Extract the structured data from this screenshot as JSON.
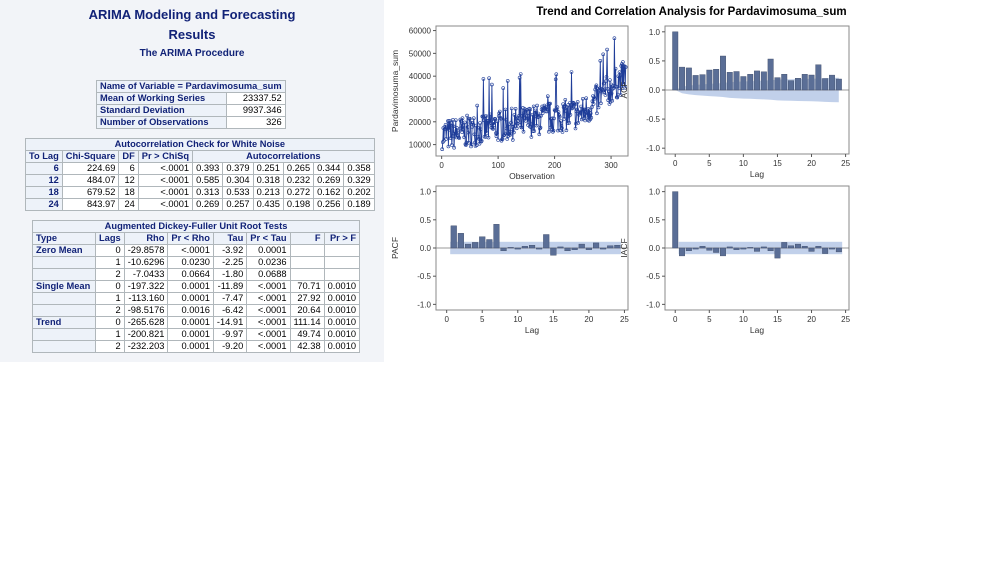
{
  "header": {
    "title_line1": "ARIMA Modeling and Forecasting",
    "title_line2": "Results",
    "procedure": "The ARIMA Procedure"
  },
  "variable_table": {
    "caption": "Name of Variable = Pardavimosuma_sum",
    "rows": [
      {
        "label": "Mean of Working Series",
        "value": "23337.52"
      },
      {
        "label": "Standard Deviation",
        "value": "9937.346"
      },
      {
        "label": "Number of Observations",
        "value": "326"
      }
    ]
  },
  "white_noise_table": {
    "caption": "Autocorrelation Check for White Noise",
    "headers": [
      "To Lag",
      "Chi-Square",
      "DF",
      "Pr > ChiSq",
      "Autocorrelations"
    ],
    "rows": [
      {
        "lag": "6",
        "chisq": "224.69",
        "df": "6",
        "p": "<.0001",
        "ac": [
          "0.393",
          "0.379",
          "0.251",
          "0.265",
          "0.344",
          "0.358"
        ]
      },
      {
        "lag": "12",
        "chisq": "484.07",
        "df": "12",
        "p": "<.0001",
        "ac": [
          "0.585",
          "0.304",
          "0.318",
          "0.232",
          "0.269",
          "0.329"
        ]
      },
      {
        "lag": "18",
        "chisq": "679.52",
        "df": "18",
        "p": "<.0001",
        "ac": [
          "0.313",
          "0.533",
          "0.213",
          "0.272",
          "0.162",
          "0.202"
        ]
      },
      {
        "lag": "24",
        "chisq": "843.97",
        "df": "24",
        "p": "<.0001",
        "ac": [
          "0.269",
          "0.257",
          "0.435",
          "0.198",
          "0.256",
          "0.189"
        ]
      }
    ]
  },
  "adf_table": {
    "caption": "Augmented Dickey-Fuller Unit Root Tests",
    "headers": [
      "Type",
      "Lags",
      "Rho",
      "Pr < Rho",
      "Tau",
      "Pr < Tau",
      "F",
      "Pr > F"
    ],
    "rows": [
      {
        "type": "Zero Mean",
        "lags": "0",
        "rho": "-29.8578",
        "prho": "<.0001",
        "tau": "-3.92",
        "ptau": "0.0001",
        "f": "",
        "pf": ""
      },
      {
        "type": "",
        "lags": "1",
        "rho": "-10.6296",
        "prho": "0.0230",
        "tau": "-2.25",
        "ptau": "0.0236",
        "f": "",
        "pf": ""
      },
      {
        "type": "",
        "lags": "2",
        "rho": "-7.0433",
        "prho": "0.0664",
        "tau": "-1.80",
        "ptau": "0.0688",
        "f": "",
        "pf": ""
      },
      {
        "type": "Single Mean",
        "lags": "0",
        "rho": "-197.322",
        "prho": "0.0001",
        "tau": "-11.89",
        "ptau": "<.0001",
        "f": "70.71",
        "pf": "0.0010"
      },
      {
        "type": "",
        "lags": "1",
        "rho": "-113.160",
        "prho": "0.0001",
        "tau": "-7.47",
        "ptau": "<.0001",
        "f": "27.92",
        "pf": "0.0010"
      },
      {
        "type": "",
        "lags": "2",
        "rho": "-98.5176",
        "prho": "0.0016",
        "tau": "-6.42",
        "ptau": "<.0001",
        "f": "20.64",
        "pf": "0.0010"
      },
      {
        "type": "Trend",
        "lags": "0",
        "rho": "-265.628",
        "prho": "0.0001",
        "tau": "-14.91",
        "ptau": "<.0001",
        "f": "111.14",
        "pf": "0.0010"
      },
      {
        "type": "",
        "lags": "1",
        "rho": "-200.821",
        "prho": "0.0001",
        "tau": "-9.97",
        "ptau": "<.0001",
        "f": "49.74",
        "pf": "0.0010"
      },
      {
        "type": "",
        "lags": "2",
        "rho": "-232.203",
        "prho": "0.0001",
        "tau": "-9.20",
        "ptau": "<.0001",
        "f": "42.38",
        "pf": "0.0010"
      }
    ]
  },
  "colors": {
    "bar": "#5a6e96",
    "line": "#1f3d99",
    "band": "#b6c8e6",
    "header_text": "#112277"
  },
  "chart_data": [
    {
      "panel": "series",
      "type": "line",
      "title": "Trend and Correlation Analysis for Pardavimosuma_sum",
      "xlabel": "Observation",
      "ylabel": "Pardavimosuma_sum",
      "xlim": [
        -10,
        330
      ],
      "ylim": [
        5000,
        62000
      ],
      "xticks": [
        "0",
        "100",
        "200",
        "300"
      ],
      "yticks": [
        "10000",
        "20000",
        "30000",
        "40000",
        "50000",
        "60000"
      ],
      "n": 326
    },
    {
      "panel": "acf",
      "type": "bar",
      "xlabel": "Lag",
      "ylabel": "ACF",
      "xlim": [
        -1.5,
        25.5
      ],
      "ylim": [
        -1.1,
        1.1
      ],
      "xticks": [
        "0",
        "5",
        "10",
        "15",
        "20",
        "25"
      ],
      "yticks": [
        "-1.0",
        "-0.5",
        "0.0",
        "0.5",
        "1.0"
      ],
      "values": [
        1.0,
        0.393,
        0.379,
        0.251,
        0.265,
        0.344,
        0.358,
        0.585,
        0.304,
        0.318,
        0.232,
        0.269,
        0.329,
        0.313,
        0.533,
        0.213,
        0.272,
        0.162,
        0.202,
        0.269,
        0.257,
        0.435,
        0.198,
        0.256,
        0.189
      ],
      "band": [
        0.0,
        0.055,
        0.075,
        0.088,
        0.097,
        0.104,
        0.112,
        0.12,
        0.135,
        0.142,
        0.148,
        0.152,
        0.156,
        0.162,
        0.168,
        0.178,
        0.182,
        0.186,
        0.189,
        0.191,
        0.195,
        0.198,
        0.205,
        0.208,
        0.21
      ]
    },
    {
      "panel": "pacf",
      "type": "bar",
      "xlabel": "Lag",
      "ylabel": "PACF",
      "xlim": [
        -1.5,
        25.5
      ],
      "ylim": [
        -1.1,
        1.1
      ],
      "xticks": [
        "0",
        "5",
        "10",
        "15",
        "20",
        "25"
      ],
      "yticks": [
        "-1.0",
        "-0.5",
        "0.0",
        "0.5",
        "1.0"
      ],
      "values": [
        0.0,
        0.393,
        0.26,
        0.07,
        0.1,
        0.2,
        0.15,
        0.42,
        -0.05,
        0.01,
        -0.02,
        0.03,
        0.05,
        -0.02,
        0.24,
        -0.13,
        0.02,
        -0.05,
        -0.03,
        0.07,
        -0.03,
        0.09,
        -0.02,
        0.04,
        0.05
      ],
      "band": 0.11
    },
    {
      "panel": "iacf",
      "type": "bar",
      "xlabel": "Lag",
      "ylabel": "IACF",
      "xlim": [
        -1.5,
        25.5
      ],
      "ylim": [
        -1.1,
        1.1
      ],
      "xticks": [
        "0",
        "5",
        "10",
        "15",
        "20",
        "25"
      ],
      "yticks": [
        "-1.0",
        "-0.5",
        "0.0",
        "0.5",
        "1.0"
      ],
      "values": [
        1.0,
        -0.14,
        -0.05,
        -0.02,
        0.03,
        -0.04,
        -0.08,
        -0.14,
        0.02,
        -0.03,
        -0.02,
        0.01,
        -0.06,
        0.02,
        -0.05,
        -0.18,
        0.1,
        0.04,
        0.07,
        0.03,
        -0.06,
        0.03,
        -0.1,
        -0.02,
        -0.07
      ],
      "band": 0.11
    }
  ]
}
